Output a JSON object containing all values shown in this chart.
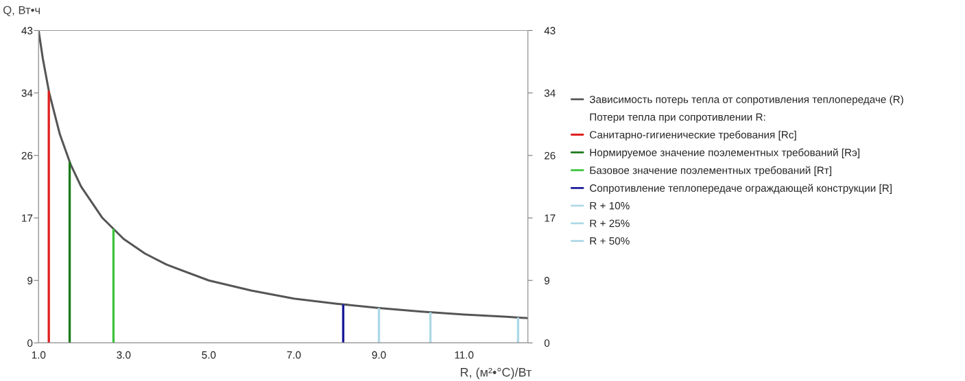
{
  "chart_data": {
    "type": "line",
    "ylabel": "Q, Вт•ч",
    "xlabel": "R, (м²•°C)/Вт",
    "annotations": [
      "Потери тепла при сопротивлении R:"
    ],
    "xlim": [
      1.0,
      12.5
    ],
    "xticks": [
      {
        "value": 1.0,
        "label": "1.0"
      },
      {
        "value": 3.0,
        "label": "3.0"
      },
      {
        "value": 5.0,
        "label": "5.0"
      },
      {
        "value": 7.0,
        "label": "7.0"
      },
      {
        "value": 9.0,
        "label": "9.0"
      },
      {
        "value": 11.0,
        "label": "11.0"
      }
    ],
    "ylim": [
      0,
      43
    ],
    "yticks": [
      0,
      {
        "value": 8.6,
        "label": "9"
      },
      {
        "value": 17.2,
        "label": "17"
      },
      {
        "value": 25.8,
        "label": "26"
      },
      {
        "value": 34.4,
        "label": "34"
      },
      43
    ],
    "y2lim": [
      0,
      43
    ],
    "y2ticks": [
      0,
      {
        "value": 8.6,
        "label": "9"
      },
      {
        "value": 17.2,
        "label": "17"
      },
      {
        "value": 25.8,
        "label": "26"
      },
      {
        "value": 34.4,
        "label": "34"
      },
      43
    ],
    "grid": false,
    "legend": "right",
    "marker": "none",
    "line_style": "solid",
    "series": [
      {
        "name": "Зависимость потерь тепла от сопротивления теплопередаче (R)",
        "color": "#555555",
        "x": [
          1.0,
          1.1,
          1.25,
          1.5,
          1.75,
          2.0,
          2.5,
          3.0,
          3.5,
          4.0,
          5.0,
          6.0,
          7.0,
          8.0,
          9.0,
          10.0,
          11.0,
          12.0,
          12.5
        ],
        "values": [
          43,
          39.1,
          34.4,
          28.7,
          24.6,
          21.5,
          17.2,
          14.3,
          12.3,
          10.8,
          8.6,
          7.2,
          6.1,
          5.4,
          4.8,
          4.3,
          3.9,
          3.6,
          3.4
        ]
      },
      {
        "name": "Санитарно-гигиенические требования [Rс]",
        "color": "#e02020",
        "x": [
          1.24,
          1.24
        ],
        "values": [
          0,
          34.7
        ]
      },
      {
        "name": "Нормируемое значение поэлементных требований [Rэ]",
        "color": "#1a7a1a",
        "x": [
          1.73,
          1.73
        ],
        "values": [
          0,
          24.9
        ]
      },
      {
        "name": "Базовое значение поэлементных требований [Rт]",
        "color": "#3cc43c",
        "x": [
          2.76,
          2.76
        ],
        "values": [
          0,
          15.7
        ]
      },
      {
        "name": "Сопротивление теплопередаче ограждающей конструкции [R]",
        "color": "#1a1a9a",
        "x": [
          8.16,
          8.16
        ],
        "values": [
          0,
          5.3
        ]
      },
      {
        "name": "R + 10%",
        "color": "#add8e6",
        "x": [
          9.0,
          9.0
        ],
        "values": [
          0,
          4.8
        ]
      },
      {
        "name": "R + 25%",
        "color": "#add8e6",
        "x": [
          10.21,
          10.21
        ],
        "values": [
          0,
          4.2
        ]
      },
      {
        "name": "R + 50%",
        "color": "#add8e6",
        "x": [
          12.27,
          12.27
        ],
        "values": [
          0,
          3.5
        ]
      }
    ]
  }
}
